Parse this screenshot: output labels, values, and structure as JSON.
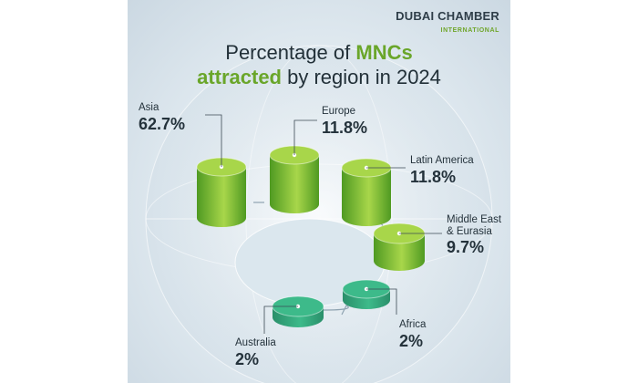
{
  "brand": {
    "name": "DUBAI CHAMBER",
    "sub": "INTERNATIONAL"
  },
  "title": {
    "part1": "Percentage of ",
    "highlight1": "MNCs",
    "highlight2": "attracted",
    "part2": " by region in 2024"
  },
  "chart_data": {
    "type": "bar",
    "title": "Percentage of MNCs attracted by region in 2024",
    "categories": [
      "Asia",
      "Europe",
      "Latin America",
      "Middle East & Eurasia",
      "Africa",
      "Australia"
    ],
    "values": [
      62.7,
      11.8,
      11.8,
      9.7,
      2,
      2
    ],
    "labels": [
      {
        "name_lines": [
          "Asia"
        ],
        "value_text": "62.7%"
      },
      {
        "name_lines": [
          "Europe"
        ],
        "value_text": "11.8%"
      },
      {
        "name_lines": [
          "Latin America"
        ],
        "value_text": "11.8%"
      },
      {
        "name_lines": [
          "Middle East",
          "& Eurasia"
        ],
        "value_text": "9.7%"
      },
      {
        "name_lines": [
          "Africa"
        ],
        "value_text": "2%"
      },
      {
        "name_lines": [
          "Australia"
        ],
        "value_text": "2%"
      }
    ],
    "colors": {
      "bright": "#a8d64a",
      "dark": "#4f9a22",
      "teal": "#3dba8a",
      "teal_dark": "#2a8f6a"
    }
  }
}
